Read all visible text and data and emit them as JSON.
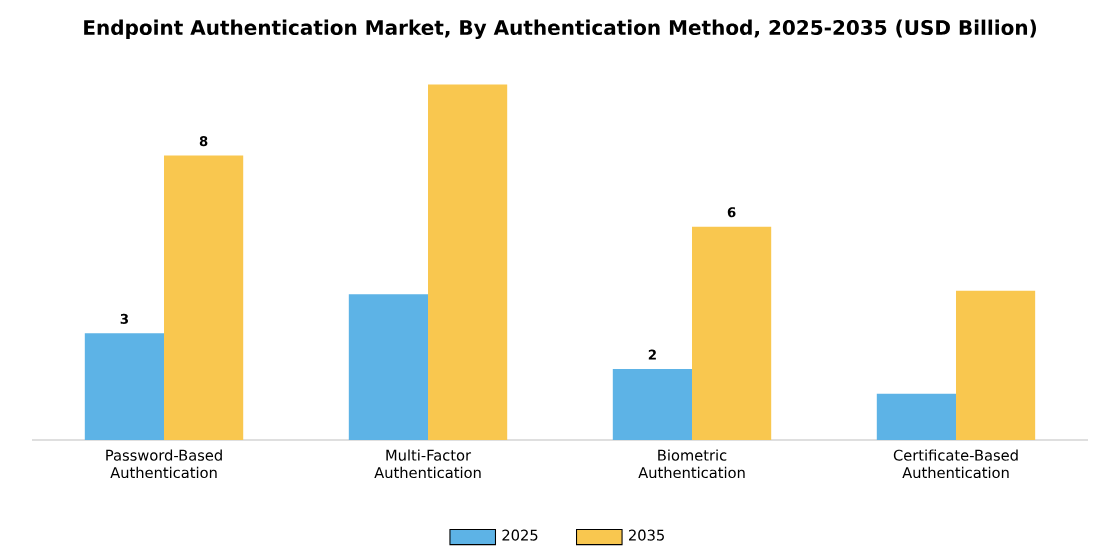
{
  "chart_data": {
    "type": "bar",
    "title": "Endpoint Authentication Market, By Authentication Method, 2025-2035 (USD Billion)",
    "categories": [
      "Password-Based Authentication",
      "Multi-Factor Authentication",
      "Biometric Authentication",
      "Certificate-Based Authentication"
    ],
    "series": [
      {
        "name": "2025",
        "color": "#5db3e6",
        "values": [
          3,
          4.1,
          2,
          1.3
        ],
        "value_labels": [
          "3",
          null,
          "2",
          null
        ]
      },
      {
        "name": "2035",
        "color": "#f9c74f",
        "values": [
          8,
          10,
          6,
          4.2
        ],
        "value_labels": [
          "8",
          null,
          "6",
          null
        ]
      }
    ],
    "legend": "bottom"
  }
}
